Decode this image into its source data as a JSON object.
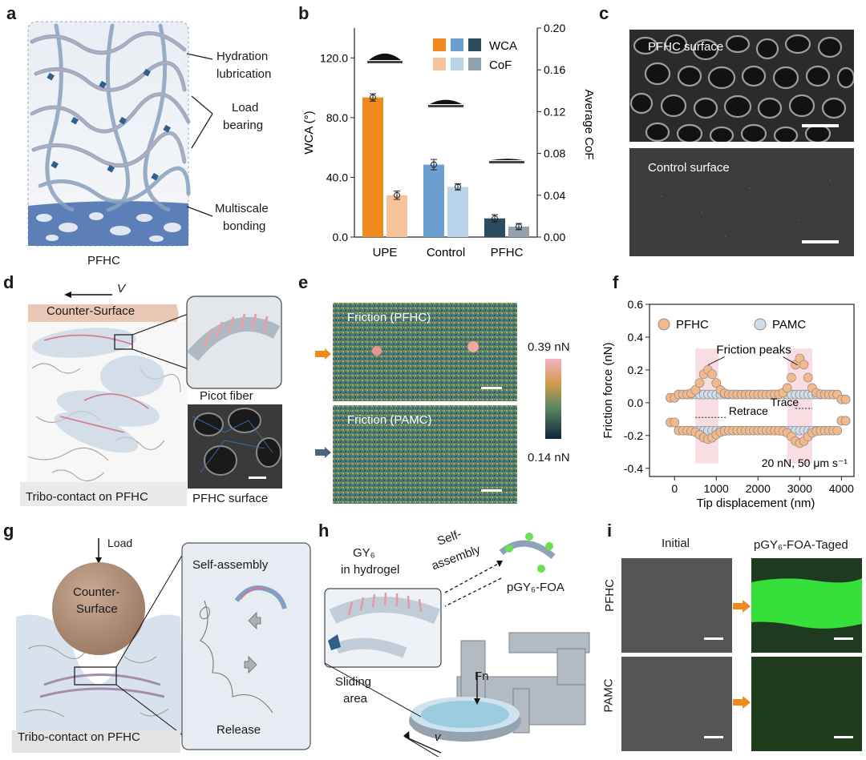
{
  "panels": {
    "a": {
      "letter": "a",
      "caption": "PFHC",
      "labels": [
        "Hydration",
        "lubrication",
        "Load",
        "bearing",
        "Multiscale",
        "bonding"
      ]
    },
    "b": {
      "letter": "b"
    },
    "c": {
      "letter": "c",
      "top": "PFHC surface",
      "bottom": "Control surface"
    },
    "d": {
      "letter": "d",
      "velocity": "V",
      "counter": "Counter-Surface",
      "picot": "Picot fiber",
      "caption": "Tribo-contact on PFHC",
      "surface": "PFHC surface"
    },
    "e": {
      "letter": "e",
      "top": "Friction (PFHC)",
      "bottom": "Friction (PAMC)",
      "cmax": "0.39 nN",
      "cmin": "0.14 nN"
    },
    "f": {
      "letter": "f"
    },
    "g": {
      "letter": "g",
      "load": "Load",
      "counter1": "Counter-",
      "counter2": "Surface",
      "selfassembly": "Self-assembly",
      "release": "Release",
      "caption": "Tribo-contact on PFHC"
    },
    "h": {
      "letter": "h",
      "gy6a": "GY₆",
      "gy6b": "in hydrogel",
      "self1": "Self-",
      "self2": "assembly",
      "foa": "pGY₆-FOA",
      "fn": "Fn",
      "slide1": "Sliding",
      "slide2": "area",
      "v": "v"
    },
    "i": {
      "letter": "i",
      "initial": "Initial",
      "tagged": "pGY₆-FOA-Taged",
      "row1": "PFHC",
      "row2": "PAMC"
    }
  },
  "chart_data": [
    {
      "type": "bar",
      "panel": "b",
      "categories": [
        "UPE",
        "Control",
        "PFHC"
      ],
      "series": [
        {
          "name": "WCA",
          "axis": "left",
          "values": [
            93.5,
            48.5,
            12.5
          ],
          "errors": [
            2.5,
            3.5,
            2.5
          ],
          "colors": [
            "#ef8a1e",
            "#6a9fcf",
            "#2d4b5f"
          ]
        },
        {
          "name": "CoF",
          "axis": "right",
          "values": [
            0.04,
            0.048,
            0.01
          ],
          "errors": [
            0.004,
            0.003,
            0.003
          ],
          "colors": [
            "#f6c29a",
            "#b9d4ea",
            "#93a2ad"
          ]
        }
      ],
      "ylabel_left": "WCA (°)",
      "ylabel_right": "Average CoF",
      "yticks_left": [
        "0.0",
        "40.0",
        "80.0",
        "120.0"
      ],
      "yticks_right": [
        "0.00",
        "0.04",
        "0.08",
        "0.12",
        "0.16",
        "0.20"
      ],
      "ylim_left": [
        0,
        140
      ],
      "ylim_right": [
        0,
        0.2
      ],
      "legend": "top-right"
    },
    {
      "type": "scatter",
      "panel": "f",
      "xlabel": "Tip displacement (nm)",
      "ylabel": "Friction force (nN)",
      "xticks": [
        "0",
        "1000",
        "2000",
        "3000",
        "4000"
      ],
      "yticks": [
        "-0.4",
        "-0.2",
        "0.0",
        "0.2",
        "0.4",
        "0.6"
      ],
      "xlim": [
        -600,
        4300
      ],
      "ylim": [
        -0.45,
        0.6
      ],
      "legend": "top",
      "annotations": [
        "Friction peaks",
        "Trace",
        "Retrace",
        "20 nN, 50 μm s⁻¹"
      ],
      "highlight_regions": [
        [
          500,
          1050
        ],
        [
          2700,
          3300
        ]
      ],
      "series": [
        {
          "name": "PFHC",
          "color": "#f4b98a",
          "trace_base": 0.05,
          "retrace_base": -0.17,
          "peaks": [
            {
              "x": 800,
              "h": 0.15
            },
            {
              "x": 3000,
              "h": 0.22
            }
          ]
        },
        {
          "name": "PAMC",
          "color": "#cfdde9",
          "trace_base": 0.05,
          "retrace_base": -0.17,
          "peaks": []
        }
      ]
    }
  ]
}
